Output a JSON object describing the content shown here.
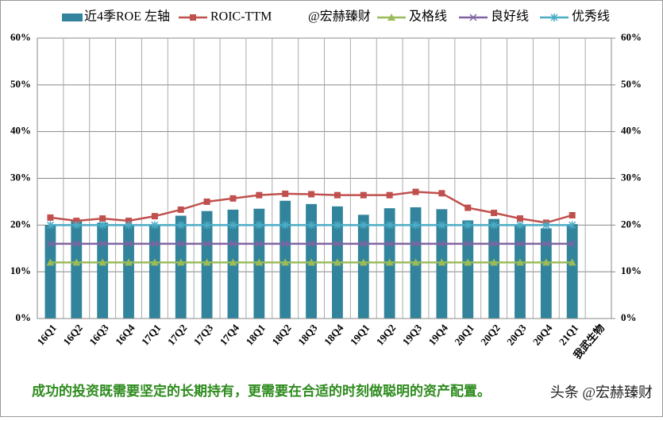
{
  "chart_data": {
    "type": "bar-line",
    "categories": [
      "16Q1",
      "16Q2",
      "16Q3",
      "16Q4",
      "17Q1",
      "17Q2",
      "17Q3",
      "17Q4",
      "18Q1",
      "18Q2",
      "18Q3",
      "18Q4",
      "19Q1",
      "19Q2",
      "19Q3",
      "19Q4",
      "20Q1",
      "20Q2",
      "20Q3",
      "20Q4",
      "21Q1",
      "我武生物"
    ],
    "series": [
      {
        "name": "近4季ROE 左轴",
        "type": "bar",
        "color": "#31849b",
        "values": [
          20,
          21,
          20.5,
          20,
          20,
          22,
          23,
          23.3,
          23.5,
          25.2,
          24.5,
          24,
          22.2,
          23.6,
          23.8,
          23.4,
          21,
          21.3,
          20,
          19.3,
          20.2,
          null
        ]
      },
      {
        "name": "ROIC-TTM",
        "type": "line",
        "marker": "square",
        "color": "#c0504d",
        "values": [
          21.6,
          20.9,
          21.4,
          20.9,
          21.9,
          23.3,
          25,
          25.7,
          26.4,
          26.7,
          26.6,
          26.4,
          26.4,
          26.4,
          27.1,
          26.8,
          23.7,
          22.6,
          21.4,
          20.5,
          22.1,
          null
        ]
      },
      {
        "name": "及格线",
        "type": "line",
        "marker": "triangle",
        "color": "#9bbb59",
        "values": [
          12,
          12,
          12,
          12,
          12,
          12,
          12,
          12,
          12,
          12,
          12,
          12,
          12,
          12,
          12,
          12,
          12,
          12,
          12,
          12,
          12,
          null
        ]
      },
      {
        "name": "良好线",
        "type": "line",
        "marker": "cross",
        "color": "#8064a2",
        "values": [
          16,
          16,
          16,
          16,
          16,
          16,
          16,
          16,
          16,
          16,
          16,
          16,
          16,
          16,
          16,
          16,
          16,
          16,
          16,
          16,
          16,
          null
        ]
      },
      {
        "name": "优秀线",
        "type": "line",
        "marker": "star",
        "color": "#4bacc6",
        "values": [
          20,
          20,
          20,
          20,
          20,
          20,
          20,
          20,
          20,
          20,
          20,
          20,
          20,
          20,
          20,
          20,
          20,
          20,
          20,
          20,
          20,
          null
        ]
      }
    ],
    "legend_note": "@宏赫臻财",
    "ylim": [
      0,
      60
    ],
    "yticks": [
      {
        "value": 0,
        "label": "0%"
      },
      {
        "value": 10,
        "label": "10%"
      },
      {
        "value": 20,
        "label": "20%"
      },
      {
        "value": 30,
        "label": "30%"
      },
      {
        "value": 40,
        "label": "40%"
      },
      {
        "value": 50,
        "label": "50%"
      },
      {
        "value": 60,
        "label": "60%"
      }
    ],
    "y2lim": [
      0,
      60
    ],
    "y2ticks": [
      {
        "value": 0,
        "label": "0%"
      },
      {
        "value": 10,
        "label": "10%"
      },
      {
        "value": 20,
        "label": "20%"
      },
      {
        "value": 30,
        "label": "30%"
      },
      {
        "value": 40,
        "label": "40%"
      },
      {
        "value": 50,
        "label": "50%"
      },
      {
        "value": 60,
        "label": "60%"
      }
    ],
    "grid": true,
    "footer": "成功的投资既需要坚定的长期持有，更需要在合适的时刻做聪明的资产配置。",
    "source_mark": "头条 @宏赫臻财"
  }
}
